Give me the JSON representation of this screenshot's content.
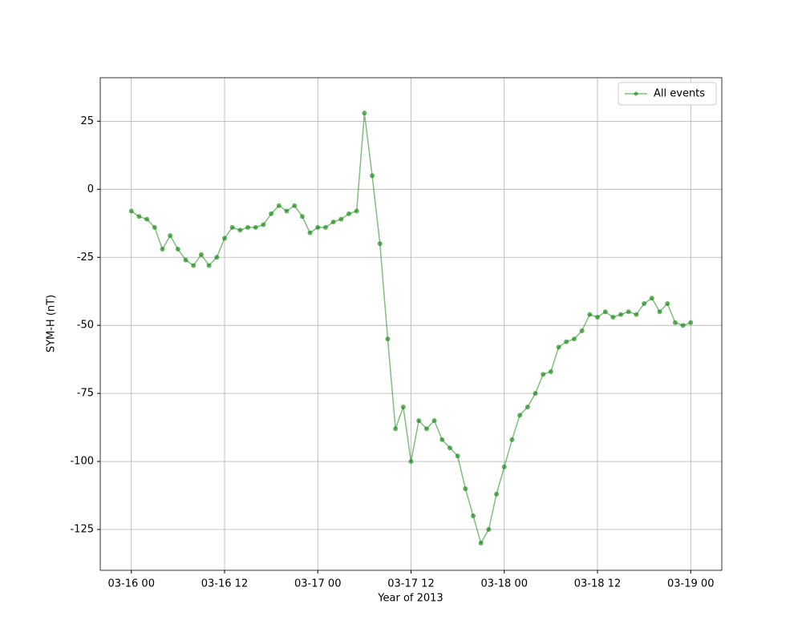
{
  "chart_data": {
    "type": "line",
    "xlabel": "Year of 2013",
    "ylabel": "SYM-H (nT)",
    "x": [
      "03-16 00",
      "03-16 01",
      "03-16 02",
      "03-16 03",
      "03-16 04",
      "03-16 05",
      "03-16 06",
      "03-16 07",
      "03-16 08",
      "03-16 09",
      "03-16 10",
      "03-16 11",
      "03-16 12",
      "03-16 13",
      "03-16 14",
      "03-16 15",
      "03-16 16",
      "03-16 17",
      "03-16 18",
      "03-16 19",
      "03-16 20",
      "03-16 21",
      "03-16 22",
      "03-16 23",
      "03-17 00",
      "03-17 01",
      "03-17 02",
      "03-17 03",
      "03-17 04",
      "03-17 05",
      "03-17 06",
      "03-17 07",
      "03-17 08",
      "03-17 09",
      "03-17 10",
      "03-17 11",
      "03-17 12",
      "03-17 13",
      "03-17 14",
      "03-17 15",
      "03-17 16",
      "03-17 17",
      "03-17 18",
      "03-17 19",
      "03-17 20",
      "03-17 21",
      "03-17 22",
      "03-17 23",
      "03-18 00",
      "03-18 01",
      "03-18 02",
      "03-18 03",
      "03-18 04",
      "03-18 05",
      "03-18 06",
      "03-18 07",
      "03-18 08",
      "03-18 09",
      "03-18 10",
      "03-18 11",
      "03-18 12",
      "03-18 13",
      "03-18 14",
      "03-18 15",
      "03-18 16",
      "03-18 17",
      "03-18 18",
      "03-18 19",
      "03-18 20",
      "03-18 21",
      "03-18 22",
      "03-18 23",
      "03-19 00"
    ],
    "series": [
      {
        "name": "All events",
        "color": "#008000",
        "values": [
          -8,
          -10,
          -11,
          -14,
          -22,
          -17,
          -22,
          -26,
          -28,
          -24,
          -28,
          -25,
          -18,
          -14,
          -15,
          -14,
          -14,
          -13,
          -9,
          -6,
          -8,
          -6,
          -10,
          -16,
          -14,
          -14,
          -12,
          -11,
          -9,
          -8,
          28,
          5,
          -20,
          -55,
          -88,
          -80,
          -100,
          -85,
          -88,
          -85,
          -92,
          -95,
          -98,
          -110,
          -120,
          -130,
          -125,
          -112,
          -102,
          -92,
          -83,
          -80,
          -75,
          -68,
          -67,
          -58,
          -56,
          -55,
          -52,
          -46,
          -47,
          -45,
          -47,
          -46,
          -45,
          -46,
          -42,
          -40,
          -45,
          -42,
          -49,
          -50,
          -49
        ]
      }
    ],
    "xlim": [
      "03-15 20",
      "03-19 04"
    ],
    "xticks": [
      "03-16 00",
      "03-16 12",
      "03-17 00",
      "03-17 12",
      "03-18 00",
      "03-18 12",
      "03-19 00"
    ],
    "ylim": [
      -140,
      41
    ],
    "yticks": [
      -125,
      -100,
      -75,
      -50,
      -25,
      0,
      25
    ],
    "grid": true,
    "legend": "upper right"
  }
}
